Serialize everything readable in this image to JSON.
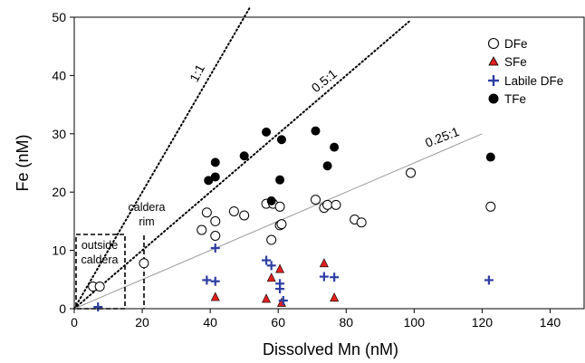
{
  "chart_data": {
    "type": "scatter",
    "xlabel": "Dissolved Mn (nM)",
    "ylabel": "Fe (nM)",
    "xlim": [
      0,
      150
    ],
    "ylim": [
      0,
      50
    ],
    "xticks": [
      0,
      20,
      40,
      60,
      80,
      100,
      120,
      140
    ],
    "yticks": [
      0,
      10,
      20,
      30,
      40,
      50
    ],
    "legend_position": "top-right",
    "series": [
      {
        "name": "DFe",
        "marker": "open-circle",
        "color": "#000000",
        "points": [
          [
            5.5,
            3.8
          ],
          [
            7.5,
            3.8
          ],
          [
            20.5,
            7.8
          ],
          [
            37.5,
            13.5
          ],
          [
            39,
            16.5
          ],
          [
            41.5,
            12.5
          ],
          [
            41.5,
            15
          ],
          [
            47,
            16.7
          ],
          [
            50,
            16
          ],
          [
            56.5,
            18
          ],
          [
            58,
            11.8
          ],
          [
            58.5,
            18
          ],
          [
            60.5,
            14.3
          ],
          [
            61,
            14.5
          ],
          [
            60.5,
            17.5
          ],
          [
            71,
            18.7
          ],
          [
            73.5,
            17.3
          ],
          [
            74.5,
            17.8
          ],
          [
            77,
            17.8
          ],
          [
            82.5,
            15.3
          ],
          [
            84.5,
            14.8
          ],
          [
            99,
            23.3
          ],
          [
            122.5,
            17.5
          ]
        ]
      },
      {
        "name": "SFe",
        "marker": "triangle",
        "color": "#e02020",
        "points": [
          [
            41.5,
            2
          ],
          [
            56.5,
            1.7
          ],
          [
            58,
            5.3
          ],
          [
            60.5,
            6.8
          ],
          [
            61,
            1
          ],
          [
            73.5,
            7.8
          ],
          [
            76.5,
            1.9
          ]
        ]
      },
      {
        "name": "Labile DFe",
        "marker": "plus",
        "color": "#2d3ea3",
        "points": [
          [
            7,
            0.3
          ],
          [
            39,
            4.9
          ],
          [
            41.5,
            10.4
          ],
          [
            41.5,
            4.7
          ],
          [
            56.5,
            8.3
          ],
          [
            58,
            7.4
          ],
          [
            60.5,
            4.3
          ],
          [
            60.5,
            3.4
          ],
          [
            61.5,
            1.4
          ],
          [
            73.5,
            5.5
          ],
          [
            76.5,
            5.4
          ],
          [
            122,
            4.9
          ]
        ]
      },
      {
        "name": "TFe",
        "marker": "filled-circle",
        "color": "#000000",
        "points": [
          [
            39.5,
            22
          ],
          [
            41.5,
            22.6
          ],
          [
            41.5,
            25.1
          ],
          [
            50,
            26.2
          ],
          [
            56.5,
            30.3
          ],
          [
            58,
            18.5
          ],
          [
            60.5,
            22.1
          ],
          [
            61,
            29
          ],
          [
            71,
            30.5
          ],
          [
            74.5,
            24.5
          ],
          [
            76.5,
            27.7
          ],
          [
            122.5,
            26
          ]
        ]
      }
    ],
    "ratio_lines": [
      {
        "label": "1:1",
        "style": "dotted",
        "slope": 1,
        "x_range": [
          0,
          51.5
        ]
      },
      {
        "label": "0.5:1",
        "style": "dotted",
        "slope": 0.5,
        "x_range": [
          0,
          98.5
        ]
      },
      {
        "label": "0.25:1",
        "style": "solid-gray",
        "slope": 0.25,
        "x_range": [
          0,
          120
        ]
      }
    ],
    "annotations": {
      "outside_caldera": [
        "outside",
        "caldera"
      ],
      "caldera_rim": [
        "caldera",
        "rim"
      ]
    }
  }
}
